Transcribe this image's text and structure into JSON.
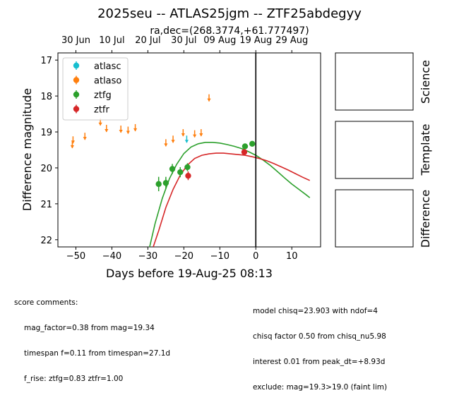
{
  "chart_data": {
    "type": "scatter",
    "title": "2025seu -- ATLAS25jgm -- ZTF25abdegyy",
    "subtitle": "ra,dec=(268.3774,+61.777497)",
    "xlabel": "Days before 19-Aug-25 08:13",
    "ylabel": "Difference magnitude",
    "xlim": [
      -55,
      18
    ],
    "ylim": [
      22.2,
      16.8
    ],
    "y_inverted": true,
    "xticks": [
      -50,
      -40,
      -30,
      -20,
      -10,
      0,
      10
    ],
    "xtick_labels": [
      "−50",
      "−40",
      "−30",
      "−20",
      "−10",
      "0",
      "10"
    ],
    "yticks": [
      17,
      18,
      19,
      20,
      21,
      22
    ],
    "ytick_labels": [
      "17",
      "18",
      "19",
      "20",
      "21",
      "22"
    ],
    "top_axis_ticks": [
      -50,
      -40,
      -30,
      -20,
      -10,
      0,
      10
    ],
    "top_axis_labels": [
      "30 Jun",
      "10 Jul",
      "20 Jul",
      "30 Jul",
      "09 Aug",
      "19 Aug",
      "29 Aug"
    ],
    "reference_line_x": 0,
    "legend": {
      "placement": "top-left",
      "entries": [
        "atlasc",
        "atlaso",
        "ztfg",
        "ztfr"
      ]
    },
    "grid": false,
    "series": [
      {
        "name": "atlasc",
        "color": "#17becf",
        "kind": "upper_limit",
        "points": [
          {
            "x": -19.2,
            "y": 19.2
          }
        ]
      },
      {
        "name": "atlaso",
        "color": "#ff7f0e",
        "kind": "upper_limit",
        "points": [
          {
            "x": -51,
            "y": 19.35
          },
          {
            "x": -50.8,
            "y": 19.22
          },
          {
            "x": -47.5,
            "y": 19.12
          },
          {
            "x": -43.2,
            "y": 18.72
          },
          {
            "x": -41.5,
            "y": 18.9
          },
          {
            "x": -37.5,
            "y": 18.92
          },
          {
            "x": -35.5,
            "y": 18.95
          },
          {
            "x": -33.5,
            "y": 18.88
          },
          {
            "x": -25,
            "y": 19.3
          },
          {
            "x": -23,
            "y": 19.2
          },
          {
            "x": -20.2,
            "y": 19.02
          },
          {
            "x": -17,
            "y": 19.05
          },
          {
            "x": -15.2,
            "y": 19.02
          },
          {
            "x": -13,
            "y": 18.05
          }
        ]
      },
      {
        "name": "ztfg",
        "color": "#2ca02c",
        "kind": "detection",
        "points": [
          {
            "x": -27,
            "y": 20.45,
            "err": 0.2
          },
          {
            "x": -25,
            "y": 20.42,
            "err": 0.17
          },
          {
            "x": -23.2,
            "y": 20.03,
            "err": 0.14
          },
          {
            "x": -21,
            "y": 20.12,
            "err": 0.14
          },
          {
            "x": -19,
            "y": 19.98,
            "err": 0.11
          },
          {
            "x": -3,
            "y": 19.4,
            "err": 0.07
          },
          {
            "x": -1,
            "y": 19.33,
            "err": 0.07
          }
        ]
      },
      {
        "name": "ztfr",
        "color": "#d62728",
        "kind": "detection",
        "points": [
          {
            "x": -18.8,
            "y": 20.22,
            "err": 0.12
          },
          {
            "x": -3.2,
            "y": 19.56,
            "err": 0.06
          }
        ]
      }
    ],
    "model_curves": [
      {
        "color": "#2ca02c",
        "points": [
          [
            -29.5,
            22.2
          ],
          [
            -28,
            21.55
          ],
          [
            -26,
            20.85
          ],
          [
            -24,
            20.3
          ],
          [
            -22,
            19.9
          ],
          [
            -20,
            19.6
          ],
          [
            -18,
            19.42
          ],
          [
            -16,
            19.33
          ],
          [
            -14,
            19.29
          ],
          [
            -12,
            19.29
          ],
          [
            -10,
            19.31
          ],
          [
            -8,
            19.35
          ],
          [
            -6,
            19.4
          ],
          [
            -4,
            19.46
          ],
          [
            -2,
            19.55
          ],
          [
            0,
            19.65
          ],
          [
            2,
            19.78
          ],
          [
            4,
            19.93
          ],
          [
            6,
            20.1
          ],
          [
            8,
            20.28
          ],
          [
            10,
            20.45
          ],
          [
            12,
            20.6
          ],
          [
            14,
            20.75
          ],
          [
            15,
            20.83
          ]
        ]
      },
      {
        "color": "#d62728",
        "points": [
          [
            -28.5,
            22.2
          ],
          [
            -27,
            21.75
          ],
          [
            -25,
            21.1
          ],
          [
            -23,
            20.6
          ],
          [
            -21,
            20.2
          ],
          [
            -19,
            19.92
          ],
          [
            -17,
            19.74
          ],
          [
            -15,
            19.65
          ],
          [
            -13,
            19.61
          ],
          [
            -11,
            19.59
          ],
          [
            -9,
            19.59
          ],
          [
            -7,
            19.61
          ],
          [
            -5,
            19.63
          ],
          [
            -3,
            19.65
          ],
          [
            -1,
            19.69
          ],
          [
            1,
            19.74
          ],
          [
            3,
            19.8
          ],
          [
            5,
            19.88
          ],
          [
            7,
            19.97
          ],
          [
            9,
            20.06
          ],
          [
            11,
            20.16
          ],
          [
            13,
            20.26
          ],
          [
            15,
            20.35
          ]
        ]
      }
    ],
    "stamp_panels": [
      "Science",
      "Template",
      "Difference"
    ]
  },
  "comments": {
    "header": "score comments:",
    "left": [
      "mag_factor=0.38 from mag=19.34",
      "timespan f=0.11 from timespan=27.1d",
      "f_rise: ztfg=0.83 ztfr=1.00"
    ],
    "right": [
      "model chisq=23.903 with ndof=4",
      "chisq factor 0.50 from chisq_nu5.98",
      "interest 0.01 from peak_dt=+8.93d",
      "exclude: mag=19.3>19.0 (faint lim)"
    ]
  }
}
